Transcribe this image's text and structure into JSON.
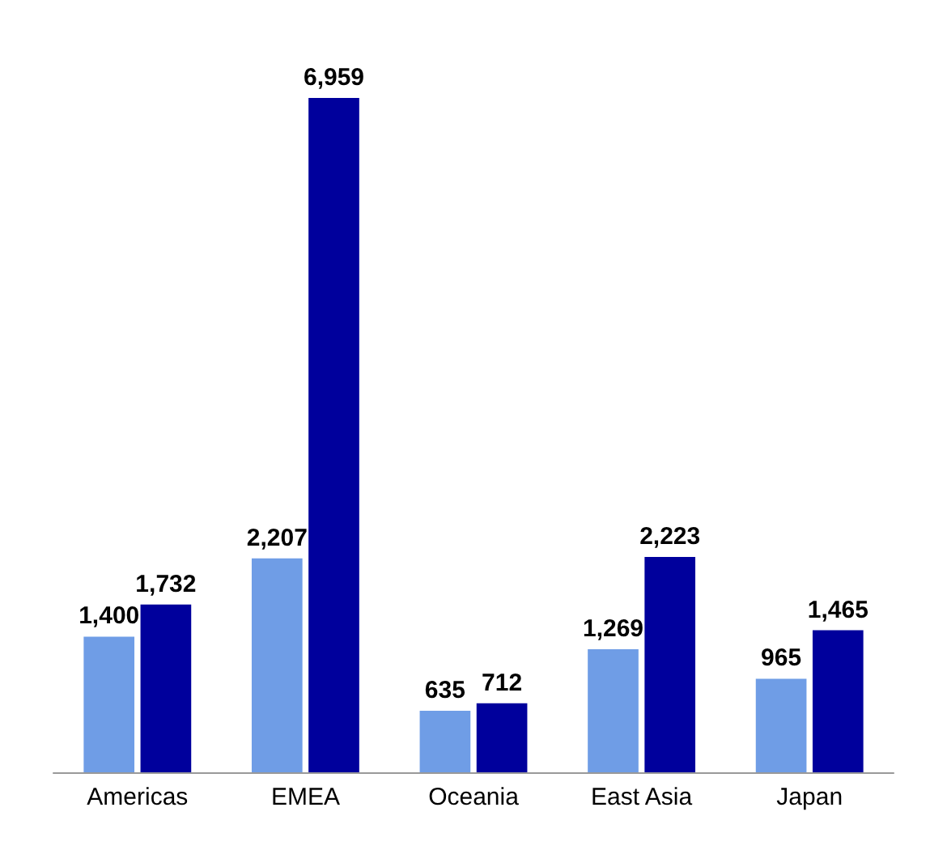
{
  "chart_data": {
    "type": "bar",
    "categories": [
      "Americas",
      "EMEA",
      "Oceania",
      "East Asia",
      "Japan"
    ],
    "series": [
      {
        "color": "#6f9de6",
        "values": [
          1400,
          2207,
          635,
          1269,
          965
        ],
        "value_labels": [
          "1,400",
          "2,207",
          "635",
          "1,269",
          "965"
        ]
      },
      {
        "color": "#00009c",
        "values": [
          1732,
          6959,
          712,
          2223,
          1465
        ],
        "value_labels": [
          "1,732",
          "6,959",
          "712",
          "2,223",
          "1,465"
        ]
      }
    ],
    "grid": false
  }
}
